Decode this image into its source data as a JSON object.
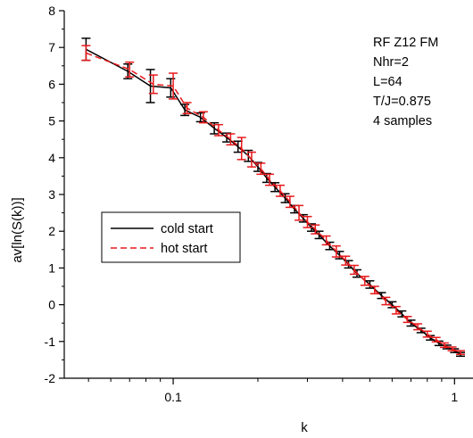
{
  "chart_data": {
    "type": "line",
    "x_scale": "log",
    "xlabel": "k",
    "ylabel": "av[ln(S(k))]",
    "xlim": [
      0.041,
      1.05
    ],
    "ylim": [
      -2,
      8
    ],
    "x_ticks": [
      {
        "value": 0.1,
        "label": "0.1"
      },
      {
        "value": 1,
        "label": "1"
      }
    ],
    "y_ticks": [
      {
        "value": -2,
        "label": "-2"
      },
      {
        "value": -1,
        "label": "-1"
      },
      {
        "value": 0,
        "label": "0"
      },
      {
        "value": 1,
        "label": "1"
      },
      {
        "value": 2,
        "label": "2"
      },
      {
        "value": 3,
        "label": "3"
      },
      {
        "value": 4,
        "label": "4"
      },
      {
        "value": 5,
        "label": "5"
      },
      {
        "value": 6,
        "label": "6"
      },
      {
        "value": 7,
        "label": "7"
      },
      {
        "value": 8,
        "label": "8"
      }
    ],
    "annotation_lines": [
      "RF Z12 FM",
      "Nhr=2",
      "L=64",
      "T/J=0.875",
      "4 samples"
    ],
    "legend": {
      "position": "middle-left",
      "entries": [
        {
          "label": "cold start",
          "color": "#000000",
          "dash": "solid"
        },
        {
          "label": "hot start",
          "color": "#e8191c",
          "dash": "dashed"
        }
      ]
    },
    "series": [
      {
        "name": "cold start",
        "color": "#000000",
        "x": [
          0.049,
          0.069,
          0.083,
          0.098,
          0.11,
          0.125,
          0.14,
          0.155,
          0.17,
          0.185,
          0.2,
          0.215,
          0.23,
          0.25,
          0.27,
          0.29,
          0.31,
          0.33,
          0.36,
          0.39,
          0.42,
          0.45,
          0.5,
          0.55,
          0.6,
          0.65,
          0.7,
          0.76,
          0.82,
          0.88,
          0.94,
          1.0,
          1.05
        ],
        "y": [
          6.95,
          6.35,
          5.95,
          5.9,
          5.3,
          5.1,
          4.8,
          4.55,
          4.3,
          4.05,
          3.75,
          3.45,
          3.2,
          2.9,
          2.6,
          2.35,
          2.1,
          1.9,
          1.6,
          1.35,
          1.1,
          0.85,
          0.55,
          0.25,
          0.0,
          -0.25,
          -0.5,
          -0.7,
          -0.9,
          -1.05,
          -1.15,
          -1.25,
          -1.35
        ],
        "err": [
          0.3,
          0.2,
          0.45,
          0.25,
          0.15,
          0.12,
          0.15,
          0.12,
          0.15,
          0.15,
          0.12,
          0.12,
          0.12,
          0.12,
          0.1,
          0.1,
          0.1,
          0.1,
          0.1,
          0.1,
          0.1,
          0.1,
          0.1,
          0.08,
          0.08,
          0.08,
          0.08,
          0.06,
          0.06,
          0.06,
          0.05,
          0.05,
          0.05
        ]
      },
      {
        "name": "hot start",
        "color": "#e8191c",
        "x": [
          0.049,
          0.07,
          0.085,
          0.1,
          0.112,
          0.128,
          0.145,
          0.16,
          0.175,
          0.19,
          0.205,
          0.22,
          0.24,
          0.26,
          0.28,
          0.3,
          0.32,
          0.35,
          0.38,
          0.41,
          0.44,
          0.48,
          0.52,
          0.57,
          0.62,
          0.68,
          0.74,
          0.8,
          0.86,
          0.92,
          0.98,
          1.05
        ],
        "y": [
          6.85,
          6.4,
          6.0,
          5.95,
          5.35,
          5.1,
          4.75,
          4.5,
          4.25,
          3.95,
          3.7,
          3.4,
          3.1,
          2.8,
          2.5,
          2.25,
          2.05,
          1.75,
          1.45,
          1.2,
          0.95,
          0.65,
          0.4,
          0.1,
          -0.15,
          -0.4,
          -0.6,
          -0.8,
          -0.95,
          -1.1,
          -1.2,
          -1.3
        ],
        "err": [
          0.2,
          0.2,
          0.25,
          0.35,
          0.15,
          0.15,
          0.15,
          0.15,
          0.3,
          0.2,
          0.15,
          0.15,
          0.15,
          0.15,
          0.2,
          0.15,
          0.12,
          0.12,
          0.15,
          0.12,
          0.12,
          0.12,
          0.1,
          0.1,
          0.1,
          0.08,
          0.08,
          0.08,
          0.06,
          0.06,
          0.05,
          0.05
        ]
      }
    ]
  }
}
